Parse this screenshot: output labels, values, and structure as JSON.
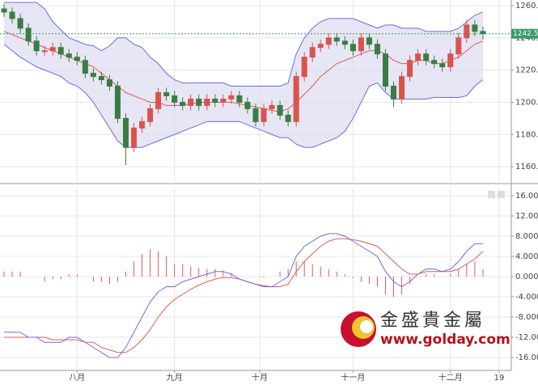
{
  "chart_data": [
    {
      "type": "candlestick",
      "xlim": [
        -0.5,
        62.5
      ],
      "ylim": [
        1150.5,
        1263.5
      ],
      "yticks": [
        {
          "value": 1160,
          "label": "1160.00"
        },
        {
          "value": 1180,
          "label": "1180.00"
        },
        {
          "value": 1200,
          "label": "1200.00"
        },
        {
          "value": 1220,
          "label": "1220.00"
        },
        {
          "value": 1240,
          "label": "1240.00"
        },
        {
          "value": 1260,
          "label": "1260.00"
        }
      ],
      "grid": true,
      "up_color": "#d9534f",
      "down_color": "#3a7d44",
      "open": [
        1258,
        1256,
        1252,
        1246,
        1238,
        1232,
        1232,
        1234,
        1230,
        1228,
        1226,
        1218,
        1216,
        1214,
        1210,
        1190,
        1172,
        1184,
        1188,
        1196,
        1206,
        1204,
        1200,
        1198,
        1202,
        1198,
        1202,
        1200,
        1202,
        1204,
        1200,
        1196,
        1188,
        1196,
        1198,
        1192,
        1188,
        1216,
        1228,
        1234,
        1236,
        1240,
        1238,
        1236,
        1232,
        1240,
        1236,
        1230,
        1210,
        1202,
        1216,
        1226,
        1230,
        1226,
        1224,
        1222,
        1230,
        1240,
        1248,
        1244
      ],
      "high": [
        1261,
        1259,
        1255,
        1249,
        1241,
        1235,
        1237,
        1237,
        1233,
        1231,
        1229,
        1221,
        1219,
        1217,
        1213,
        1193,
        1187,
        1191,
        1199,
        1209,
        1209,
        1207,
        1203,
        1205,
        1205,
        1205,
        1205,
        1205,
        1207,
        1207,
        1203,
        1199,
        1199,
        1201,
        1201,
        1195,
        1219,
        1231,
        1237,
        1239,
        1243,
        1243,
        1241,
        1239,
        1243,
        1243,
        1239,
        1233,
        1213,
        1219,
        1229,
        1233,
        1233,
        1229,
        1227,
        1233,
        1243,
        1251,
        1251,
        1247
      ],
      "low": [
        1253,
        1249,
        1243,
        1235,
        1229,
        1229,
        1229,
        1227,
        1225,
        1223,
        1215,
        1213,
        1211,
        1207,
        1187,
        1161,
        1169,
        1181,
        1185,
        1193,
        1201,
        1197,
        1195,
        1195,
        1195,
        1195,
        1197,
        1197,
        1199,
        1197,
        1193,
        1185,
        1185,
        1193,
        1189,
        1185,
        1185,
        1213,
        1225,
        1231,
        1233,
        1235,
        1233,
        1229,
        1229,
        1233,
        1227,
        1207,
        1197,
        1199,
        1213,
        1223,
        1223,
        1221,
        1219,
        1219,
        1227,
        1237,
        1241,
        1239
      ],
      "close": [
        1256,
        1252,
        1246,
        1238,
        1232,
        1232,
        1234,
        1230,
        1228,
        1226,
        1218,
        1216,
        1214,
        1210,
        1190,
        1172,
        1184,
        1188,
        1196,
        1206,
        1204,
        1200,
        1198,
        1202,
        1198,
        1202,
        1200,
        1202,
        1204,
        1200,
        1196,
        1188,
        1196,
        1198,
        1192,
        1188,
        1216,
        1228,
        1234,
        1236,
        1240,
        1238,
        1236,
        1232,
        1240,
        1236,
        1230,
        1210,
        1202,
        1216,
        1226,
        1230,
        1226,
        1224,
        1222,
        1230,
        1240,
        1248,
        1244,
        1242.55
      ],
      "band_color": "#6b6bea",
      "band_fill": "#dcdcf0",
      "mid_color": "#e05a5a",
      "upper": [
        1262,
        1262,
        1262,
        1262,
        1262,
        1258,
        1250,
        1245,
        1240,
        1238,
        1236,
        1235,
        1232,
        1235,
        1240,
        1240,
        1236,
        1234,
        1228,
        1224,
        1218,
        1214,
        1212,
        1212,
        1212,
        1212,
        1212,
        1212,
        1210,
        1210,
        1210,
        1210,
        1210,
        1210,
        1210,
        1212,
        1230,
        1240,
        1246,
        1250,
        1252,
        1252,
        1252,
        1252,
        1250,
        1248,
        1246,
        1248,
        1248,
        1246,
        1246,
        1246,
        1244,
        1244,
        1244,
        1244,
        1246,
        1250,
        1254,
        1256
      ],
      "middle": [
        1244,
        1242,
        1240,
        1238,
        1236,
        1234,
        1232,
        1230,
        1228,
        1226,
        1224,
        1222,
        1218,
        1214,
        1210,
        1206,
        1204,
        1202,
        1200,
        1200,
        1198,
        1198,
        1198,
        1199,
        1200,
        1200,
        1200,
        1200,
        1200,
        1199,
        1198,
        1197,
        1196,
        1195,
        1194,
        1196,
        1200,
        1205,
        1210,
        1216,
        1220,
        1224,
        1226,
        1228,
        1230,
        1232,
        1232,
        1230,
        1226,
        1224,
        1224,
        1226,
        1226,
        1224,
        1224,
        1226,
        1228,
        1232,
        1236,
        1238
      ],
      "lower": [
        1236,
        1232,
        1228,
        1225,
        1222,
        1220,
        1218,
        1216,
        1212,
        1210,
        1206,
        1200,
        1192,
        1184,
        1176,
        1172,
        1172,
        1172,
        1174,
        1176,
        1178,
        1180,
        1182,
        1184,
        1186,
        1188,
        1188,
        1188,
        1188,
        1188,
        1186,
        1184,
        1182,
        1180,
        1178,
        1178,
        1174,
        1172,
        1172,
        1174,
        1176,
        1178,
        1182,
        1190,
        1200,
        1210,
        1212,
        1206,
        1202,
        1202,
        1202,
        1202,
        1202,
        1203,
        1203,
        1203,
        1203,
        1204,
        1210,
        1214
      ],
      "last_price": 1242.55,
      "last_price_color": "#3a9a6a"
    },
    {
      "type": "macd",
      "xlim": [
        -0.5,
        62.5
      ],
      "ylim": [
        -18.4,
        17.6
      ],
      "yticks": [
        {
          "value": 16,
          "label": "16.0000"
        },
        {
          "value": 12,
          "label": "12.0000"
        },
        {
          "value": 8,
          "label": "8.0000"
        },
        {
          "value": 4,
          "label": "4.0000"
        },
        {
          "value": 0,
          "label": "0.0000"
        },
        {
          "value": -4,
          "label": "-4.0000"
        },
        {
          "value": -8,
          "label": "-8.0000"
        },
        {
          "value": -12,
          "label": "-12.0000"
        },
        {
          "value": -16,
          "label": "-16.0000"
        }
      ],
      "xticks": [
        {
          "value": 9,
          "label": "八月"
        },
        {
          "value": 21,
          "label": "九月"
        },
        {
          "value": 31.5,
          "label": "十月"
        },
        {
          "value": 43,
          "label": "十一月"
        },
        {
          "value": 55,
          "label": "十二月"
        },
        {
          "value": 61,
          "label": "19"
        }
      ],
      "grid": true,
      "dif_color": "#6b6bea",
      "dea_color": "#e05a5a",
      "hist_color": "#e05a5a",
      "dif": [
        -11,
        -11,
        -11,
        -12,
        -12,
        -13,
        -13,
        -13,
        -12,
        -12,
        -13,
        -14,
        -15,
        -16,
        -16,
        -14,
        -11,
        -8,
        -5,
        -3,
        -2,
        -2,
        -1,
        -0.5,
        0,
        0.5,
        1,
        1,
        0.5,
        -0.5,
        -1,
        -1.5,
        -2,
        -2,
        -1,
        0,
        4,
        6,
        7,
        8,
        8.5,
        8.5,
        8,
        7,
        6,
        5,
        4,
        1,
        -1,
        -2,
        -1,
        0.5,
        1.5,
        1.5,
        1,
        1.5,
        3,
        5,
        6.5,
        6.5
      ],
      "dea": [
        -12,
        -12,
        -12,
        -12,
        -12,
        -12,
        -12.5,
        -12.5,
        -12.5,
        -12.5,
        -13,
        -13,
        -14,
        -14.5,
        -15,
        -15,
        -14,
        -12.5,
        -10.5,
        -8,
        -6,
        -4.5,
        -3.5,
        -2.5,
        -1.7,
        -1,
        -0.5,
        -0.2,
        -0.2,
        -0.5,
        -1,
        -1.5,
        -1.8,
        -2,
        -2,
        -1.5,
        1,
        3,
        4.5,
        6,
        7,
        7.5,
        7.5,
        7.3,
        7,
        6.5,
        6,
        4.5,
        3,
        1.5,
        0.5,
        0.5,
        1,
        1,
        1,
        1,
        1.5,
        2.5,
        3.5,
        5
      ],
      "hist": [
        1,
        1,
        1,
        0,
        0,
        -1,
        -0.5,
        -0.5,
        0.5,
        0.5,
        0,
        -1,
        -1,
        -1.5,
        -1,
        1,
        3,
        4.5,
        5.5,
        5,
        4,
        2.5,
        2.5,
        2,
        1.7,
        1.5,
        1.5,
        1.2,
        0.7,
        0,
        0,
        0,
        -0.2,
        0,
        1,
        1.5,
        3,
        3,
        2.5,
        2,
        1.5,
        1,
        0.5,
        -0.3,
        -1,
        -1.5,
        -2,
        -3.5,
        -4,
        -3.5,
        -1.5,
        0,
        0.5,
        0.5,
        0,
        0.5,
        1.5,
        2.5,
        3,
        1.5
      ]
    }
  ],
  "watermark": {
    "name": "金盛貴金屬",
    "url": "www.golday.com"
  }
}
